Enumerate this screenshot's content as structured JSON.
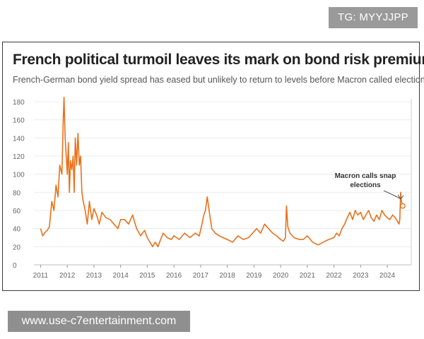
{
  "watermark": {
    "tag": "TG: MYYJJPP",
    "site": "www.use-c7entertainment.com"
  },
  "chart_data": {
    "type": "line",
    "title": "French political turmoil leaves its mark on bond risk premium",
    "subtitle": "French-German bond yield spread has eased but unlikely to return to levels before Macron called election",
    "xlabel": "",
    "ylabel": "",
    "ylim": [
      0,
      180
    ],
    "y_ticks": [
      0,
      20,
      40,
      60,
      80,
      100,
      120,
      140,
      160,
      180
    ],
    "x_range": [
      2010.75,
      2024.9
    ],
    "x_ticks": [
      "2011",
      "2012",
      "2013",
      "2014",
      "2015",
      "2016",
      "2017",
      "2018",
      "2019",
      "2020",
      "2021",
      "2022",
      "2023",
      "2024"
    ],
    "grid": "horizontal",
    "line_color": "#e8711a",
    "annotation": {
      "text_line1": "Macron calls snap",
      "text_line2": "elections",
      "x": 2024.45,
      "y": 68
    },
    "series": [
      {
        "x": [
          2011.0,
          2011.08,
          2011.17,
          2011.25,
          2011.33,
          2011.42,
          2011.5,
          2011.58,
          2011.65,
          2011.72,
          2011.8,
          2011.85,
          2011.88,
          2011.92,
          2011.96,
          2012.0,
          2012.04,
          2012.08,
          2012.12,
          2012.17,
          2012.22,
          2012.26,
          2012.3,
          2012.35,
          2012.4,
          2012.45,
          2012.5,
          2012.55,
          2012.6,
          2012.67,
          2012.75,
          2012.83,
          2012.92,
          2013.0,
          2013.1,
          2013.2,
          2013.3,
          2013.45,
          2013.6,
          2013.75,
          2013.9,
          2014.0,
          2014.15,
          2014.3,
          2014.45,
          2014.6,
          2014.75,
          2014.9,
          2015.0,
          2015.1,
          2015.2,
          2015.3,
          2015.4,
          2015.5,
          2015.6,
          2015.75,
          2015.9,
          2016.0,
          2016.2,
          2016.4,
          2016.6,
          2016.8,
          2016.95,
          2017.05,
          2017.12,
          2017.18,
          2017.25,
          2017.32,
          2017.42,
          2017.55,
          2017.7,
          2017.85,
          2018.0,
          2018.2,
          2018.4,
          2018.6,
          2018.8,
          2018.95,
          2019.1,
          2019.25,
          2019.4,
          2019.55,
          2019.7,
          2019.85,
          2020.0,
          2020.1,
          2020.18,
          2020.22,
          2020.27,
          2020.35,
          2020.5,
          2020.7,
          2020.85,
          2021.0,
          2021.2,
          2021.4,
          2021.6,
          2021.8,
          2022.0,
          2022.1,
          2022.2,
          2022.3,
          2022.4,
          2022.5,
          2022.6,
          2022.7,
          2022.8,
          2022.9,
          2023.0,
          2023.1,
          2023.2,
          2023.3,
          2023.4,
          2023.5,
          2023.6,
          2023.7,
          2023.8,
          2023.9,
          2024.0,
          2024.1,
          2024.2,
          2024.3,
          2024.38,
          2024.44,
          2024.47,
          2024.5,
          2024.53,
          2024.58
        ],
        "y": [
          40,
          32,
          36,
          38,
          42,
          70,
          60,
          88,
          75,
          110,
          100,
          160,
          185,
          140,
          120,
          100,
          135,
          80,
          115,
          105,
          120,
          80,
          140,
          110,
          145,
          110,
          120,
          80,
          70,
          60,
          45,
          70,
          50,
          62,
          55,
          45,
          58,
          52,
          50,
          45,
          40,
          50,
          50,
          45,
          55,
          40,
          32,
          38,
          30,
          25,
          20,
          25,
          20,
          28,
          35,
          30,
          28,
          32,
          28,
          35,
          30,
          35,
          32,
          45,
          55,
          60,
          75,
          60,
          40,
          35,
          32,
          30,
          28,
          25,
          32,
          28,
          30,
          35,
          40,
          35,
          45,
          40,
          35,
          32,
          28,
          26,
          30,
          65,
          42,
          35,
          30,
          28,
          28,
          32,
          25,
          22,
          25,
          28,
          30,
          35,
          32,
          40,
          45,
          52,
          58,
          50,
          60,
          55,
          58,
          50,
          55,
          60,
          52,
          48,
          55,
          50,
          60,
          55,
          52,
          50,
          55,
          52,
          48,
          45,
          50,
          80,
          70,
          65
        ]
      }
    ]
  }
}
